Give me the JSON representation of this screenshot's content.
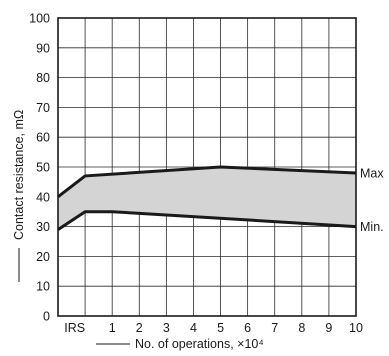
{
  "chart_data": {
    "type": "area",
    "ylabel": "Contact resistance, mΩ",
    "xlabel": "No. of operations, ×10⁴",
    "x_categories": [
      "IRS",
      "1",
      "2",
      "3",
      "4",
      "5",
      "6",
      "7",
      "8",
      "9",
      "10"
    ],
    "yticks": [
      "0",
      "10",
      "20",
      "30",
      "40",
      "50",
      "60",
      "70",
      "80",
      "90",
      "100"
    ],
    "ylim": [
      0,
      100
    ],
    "grid": true,
    "band_color": "#d4d4d4",
    "line_color": "#1a1a1a",
    "series": [
      {
        "name": "Max",
        "points": [
          {
            "x": "start",
            "y": 40
          },
          {
            "x": "IRS",
            "y": 47
          },
          {
            "x": "5",
            "y": 50
          },
          {
            "x": "10",
            "y": 48
          }
        ]
      },
      {
        "name": "Min.",
        "points": [
          {
            "x": "start",
            "y": 29
          },
          {
            "x": "IRS",
            "y": 35
          },
          {
            "x": "1",
            "y": 35
          },
          {
            "x": "10",
            "y": 30
          }
        ]
      }
    ]
  }
}
